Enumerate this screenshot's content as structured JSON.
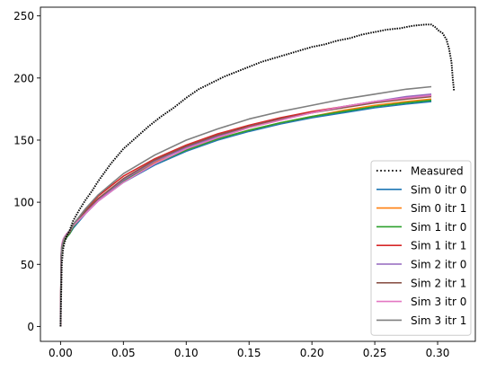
{
  "chart_data": {
    "type": "line",
    "title": "",
    "xlabel": "",
    "ylabel": "",
    "xlim": [
      -0.016,
      0.33
    ],
    "ylim": [
      -12,
      257
    ],
    "grid": false,
    "legend_position": "lower-right",
    "x_ticks": [
      0.0,
      0.05,
      0.1,
      0.15,
      0.2,
      0.25,
      0.3
    ],
    "x_tick_labels": [
      "0.00",
      "0.05",
      "0.10",
      "0.15",
      "0.20",
      "0.25",
      "0.30"
    ],
    "y_ticks": [
      0,
      50,
      100,
      150,
      200,
      250
    ],
    "y_tick_labels": [
      "0",
      "50",
      "100",
      "150",
      "200",
      "250"
    ],
    "measured": {
      "name": "Measured",
      "color": "#000000",
      "style": "dotted",
      "x": [
        0.0,
        0.0005,
        0.001,
        0.002,
        0.003,
        0.005,
        0.0075,
        0.01,
        0.015,
        0.02,
        0.025,
        0.03,
        0.04,
        0.05,
        0.06,
        0.07,
        0.08,
        0.09,
        0.1,
        0.11,
        0.12,
        0.13,
        0.14,
        0.15,
        0.16,
        0.17,
        0.18,
        0.19,
        0.2,
        0.21,
        0.22,
        0.23,
        0.24,
        0.25,
        0.26,
        0.27,
        0.28,
        0.29,
        0.295,
        0.298,
        0.301,
        0.304,
        0.307,
        0.309,
        0.311,
        0.312,
        0.313
      ],
      "y": [
        0,
        25,
        50,
        62,
        67,
        73,
        78,
        85,
        94,
        102,
        109,
        117,
        131,
        143,
        152,
        161,
        169,
        176,
        184,
        191,
        196,
        201,
        205,
        209,
        213,
        216,
        219,
        222,
        225,
        227,
        230,
        232,
        235,
        237,
        239,
        240,
        242,
        243,
        243,
        241,
        238,
        236,
        231,
        224,
        213,
        200,
        190
      ]
    },
    "x": [
      0.0,
      0.0005,
      0.001,
      0.002,
      0.003,
      0.005,
      0.0075,
      0.01,
      0.02,
      0.03,
      0.05,
      0.075,
      0.1,
      0.125,
      0.15,
      0.175,
      0.2,
      0.225,
      0.25,
      0.275,
      0.295
    ],
    "series": [
      {
        "name": "Sim 0 itr 0",
        "color": "#1f77b4",
        "values": [
          0,
          55,
          62,
          66,
          69,
          72,
          75,
          79,
          91,
          101,
          116,
          130,
          141,
          150,
          157,
          163,
          168,
          172,
          176,
          179,
          181
        ]
      },
      {
        "name": "Sim 0 itr 1",
        "color": "#ff7f0e",
        "values": [
          0,
          56,
          63,
          67,
          70,
          73,
          76,
          81,
          93,
          103,
          118,
          132,
          142,
          151,
          158,
          164,
          169,
          174,
          178,
          181,
          183
        ]
      },
      {
        "name": "Sim 1 itr 0",
        "color": "#2ca02c",
        "values": [
          0,
          55,
          62,
          66,
          69,
          72,
          75,
          80,
          92,
          102,
          117,
          131,
          142,
          151,
          158,
          164,
          169,
          173,
          177,
          180,
          182
        ]
      },
      {
        "name": "Sim 1 itr 1",
        "color": "#d62728",
        "values": [
          0,
          57,
          64,
          68,
          71,
          74,
          77,
          82,
          94,
          105,
          121,
          135,
          146,
          155,
          162,
          168,
          173,
          177,
          181,
          184,
          186
        ]
      },
      {
        "name": "Sim 2 itr 0",
        "color": "#9467bd",
        "values": [
          0,
          58,
          65,
          69,
          71,
          74,
          77,
          81,
          92,
          102,
          118,
          133,
          144,
          153,
          161,
          167,
          172,
          177,
          181,
          185,
          187
        ]
      },
      {
        "name": "Sim 2 itr 1",
        "color": "#8c564b",
        "values": [
          0,
          56,
          63,
          67,
          70,
          73,
          76,
          81,
          93,
          103,
          119,
          134,
          145,
          154,
          161,
          167,
          172,
          176,
          180,
          183,
          185
        ]
      },
      {
        "name": "Sim 3 itr 0",
        "color": "#e377c2",
        "values": [
          0,
          59,
          66,
          70,
          72,
          75,
          77,
          81,
          91,
          101,
          116,
          131,
          143,
          152,
          160,
          166,
          172,
          177,
          181,
          184,
          186
        ]
      },
      {
        "name": "Sim 3 itr 1",
        "color": "#7f7f7f",
        "values": [
          0,
          57,
          64,
          68,
          71,
          74,
          77,
          82,
          95,
          106,
          123,
          138,
          150,
          159,
          167,
          173,
          178,
          183,
          187,
          191,
          193
        ]
      }
    ]
  }
}
